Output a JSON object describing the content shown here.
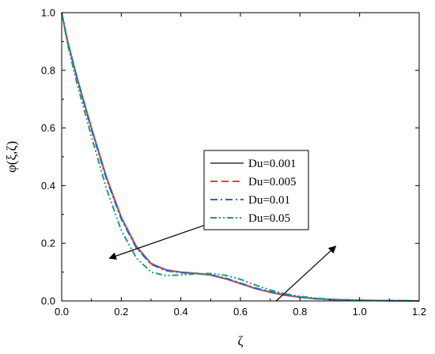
{
  "chart_data": {
    "type": "line",
    "xlabel": "ζ",
    "ylabel": "φ(ξ,ζ)",
    "xlim": [
      0.0,
      1.2
    ],
    "ylim": [
      0.0,
      1.0
    ],
    "xticks": [
      "0.0",
      "0.2",
      "0.4",
      "0.6",
      "0.8",
      "1.0",
      "1.2"
    ],
    "yticks": [
      "0.0",
      "0.2",
      "0.4",
      "0.6",
      "0.8",
      "1.0"
    ],
    "grid": false,
    "legend_position": "center-right",
    "series": [
      {
        "name": "Du=0.001",
        "color": "#666666",
        "dash": "solid",
        "x": [
          0.0,
          0.02,
          0.05,
          0.1,
          0.15,
          0.2,
          0.25,
          0.3,
          0.35,
          0.4,
          0.45,
          0.5,
          0.55,
          0.6,
          0.65,
          0.7,
          0.75,
          0.8,
          0.85,
          0.9,
          1.0,
          1.1,
          1.2
        ],
        "y": [
          1.0,
          0.9,
          0.78,
          0.6,
          0.43,
          0.29,
          0.19,
          0.13,
          0.108,
          0.1,
          0.096,
          0.09,
          0.077,
          0.06,
          0.043,
          0.03,
          0.02,
          0.013,
          0.008,
          0.005,
          0.002,
          0.001,
          0.0
        ]
      },
      {
        "name": "Du=0.005",
        "color": "#e8463c",
        "dash": "dash",
        "x": [
          0.0,
          0.02,
          0.05,
          0.1,
          0.15,
          0.2,
          0.25,
          0.3,
          0.35,
          0.4,
          0.45,
          0.5,
          0.55,
          0.6,
          0.65,
          0.7,
          0.75,
          0.8,
          0.85,
          0.9,
          1.0,
          1.1,
          1.2
        ],
        "y": [
          1.0,
          0.9,
          0.78,
          0.598,
          0.428,
          0.288,
          0.188,
          0.129,
          0.107,
          0.099,
          0.096,
          0.09,
          0.078,
          0.061,
          0.044,
          0.031,
          0.021,
          0.013,
          0.008,
          0.005,
          0.002,
          0.001,
          0.0
        ]
      },
      {
        "name": "Du=0.01",
        "color": "#2f5fd0",
        "dash": "dashdot",
        "x": [
          0.0,
          0.02,
          0.05,
          0.1,
          0.15,
          0.2,
          0.25,
          0.3,
          0.35,
          0.4,
          0.45,
          0.5,
          0.55,
          0.6,
          0.65,
          0.7,
          0.75,
          0.8,
          0.85,
          0.9,
          1.0,
          1.1,
          1.2
        ],
        "y": [
          1.0,
          0.9,
          0.778,
          0.595,
          0.424,
          0.284,
          0.185,
          0.127,
          0.105,
          0.098,
          0.095,
          0.09,
          0.079,
          0.062,
          0.045,
          0.032,
          0.021,
          0.013,
          0.008,
          0.005,
          0.002,
          0.001,
          0.0
        ]
      },
      {
        "name": "Du=0.05",
        "color": "#1e9e72",
        "dash": "dashdotdot",
        "x": [
          0.0,
          0.02,
          0.05,
          0.1,
          0.15,
          0.2,
          0.25,
          0.3,
          0.35,
          0.4,
          0.45,
          0.5,
          0.55,
          0.6,
          0.65,
          0.7,
          0.75,
          0.8,
          0.85,
          0.9,
          1.0,
          1.1,
          1.2
        ],
        "y": [
          1.0,
          0.89,
          0.76,
          0.57,
          0.39,
          0.245,
          0.15,
          0.1,
          0.088,
          0.09,
          0.094,
          0.095,
          0.089,
          0.075,
          0.055,
          0.038,
          0.025,
          0.016,
          0.01,
          0.006,
          0.002,
          0.001,
          0.0
        ]
      }
    ],
    "annotations": [
      {
        "type": "arrow",
        "description": "decreasing trend",
        "from": [
          0.5,
          0.27
        ],
        "to": [
          0.16,
          0.148
        ]
      },
      {
        "type": "arrow",
        "description": "increasing trend",
        "from": [
          0.72,
          0.0
        ],
        "to": [
          0.92,
          0.19
        ]
      }
    ]
  }
}
